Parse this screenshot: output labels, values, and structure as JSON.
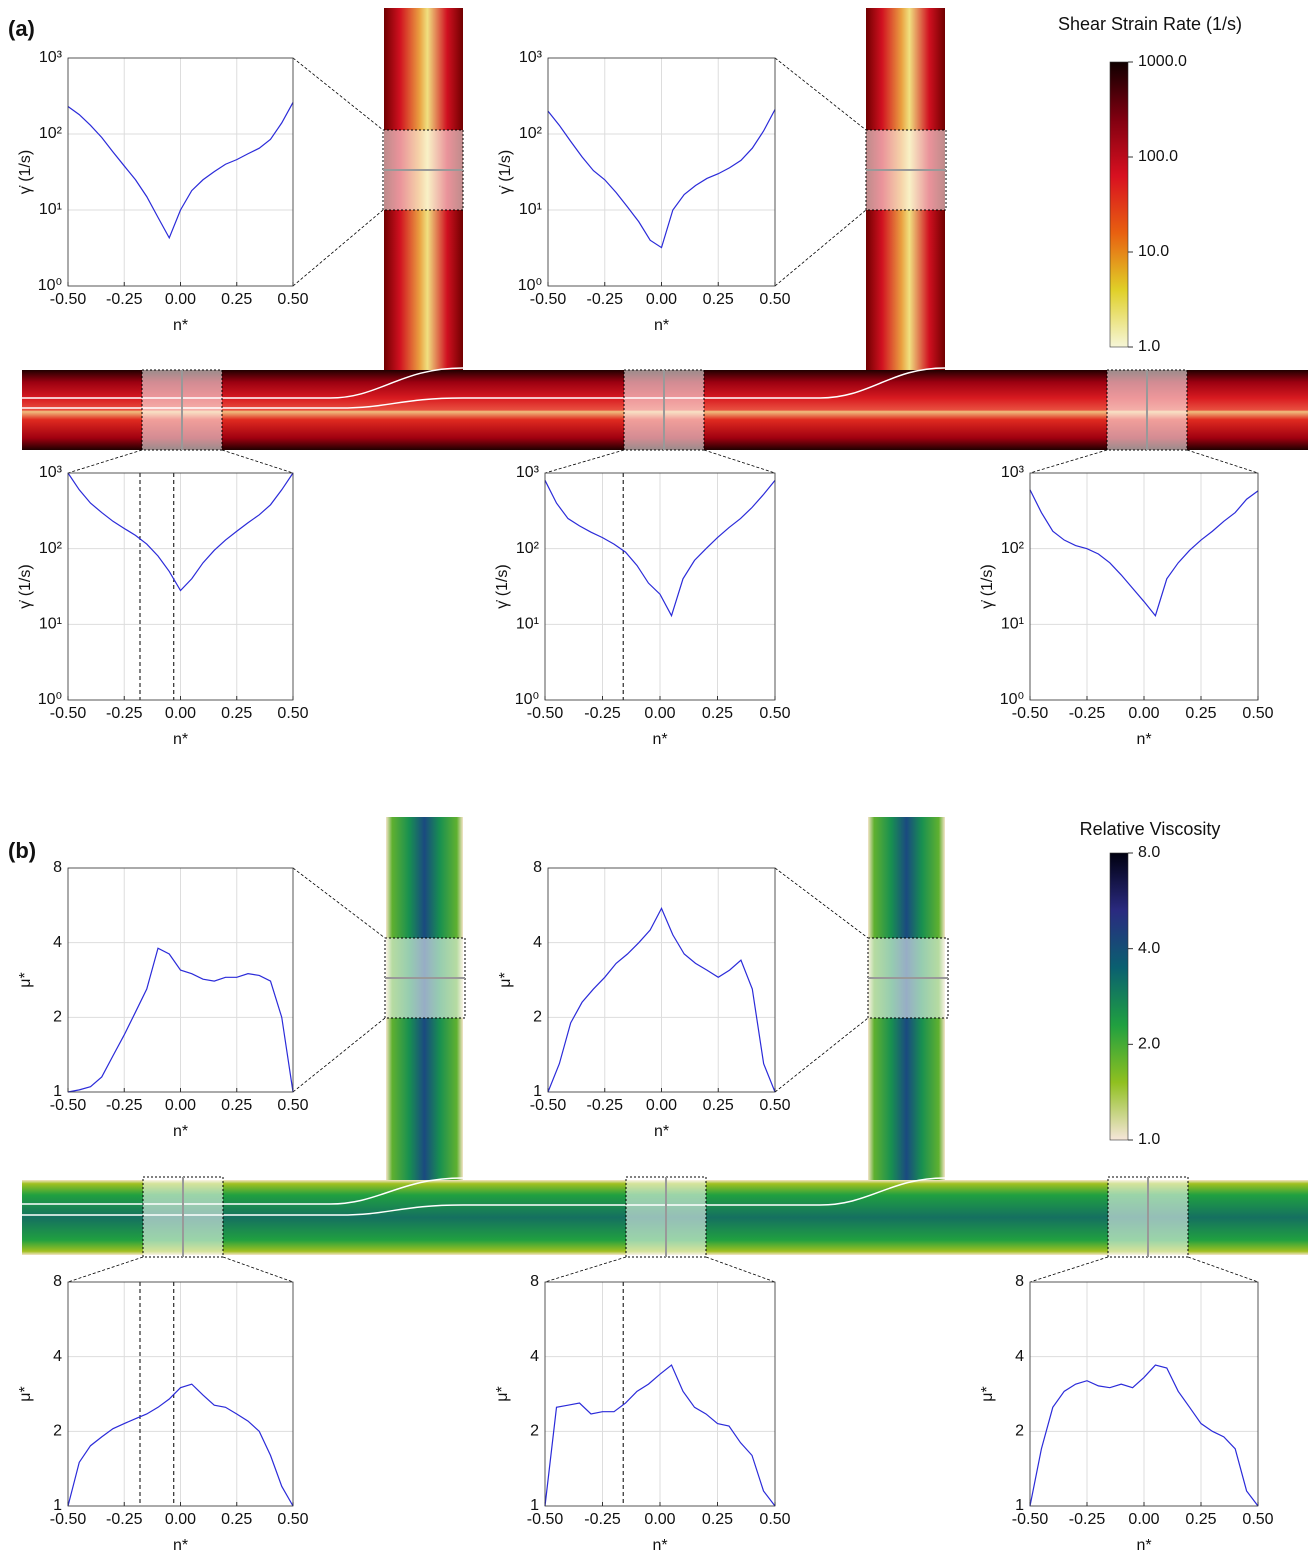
{
  "panels": [
    {
      "label": "(a)",
      "colorbar": {
        "title": "Shear Strain Rate (1/s)",
        "scale": "log",
        "lim": [
          1,
          1000
        ],
        "ticks": [
          {
            "value": 1000,
            "label": "1000.0"
          },
          {
            "value": 100,
            "label": "100.0"
          },
          {
            "value": 10,
            "label": "10.0"
          },
          {
            "value": 1,
            "label": "1.0"
          }
        ],
        "colors": [
          "#f6f6d8",
          "#e0d028",
          "#e86010",
          "#d81020",
          "#800010",
          "#100000"
        ]
      }
    },
    {
      "label": "(b)",
      "colorbar": {
        "title": "Relative Viscosity",
        "scale": "log",
        "lim": [
          1,
          8
        ],
        "ticks": [
          {
            "value": 8,
            "label": "8.0"
          },
          {
            "value": 4,
            "label": "4.0"
          },
          {
            "value": 2,
            "label": "2.0"
          },
          {
            "value": 1,
            "label": "1.0"
          }
        ],
        "colors": [
          "#f6e6da",
          "#90c020",
          "#20a040",
          "#0a6070",
          "#2a2a80",
          "#000010"
        ]
      }
    }
  ],
  "chart_data": [
    {
      "type": "line",
      "xlabel": "n*",
      "ylabel": "γ̇ (1/s)",
      "yscale": "log",
      "grid": true,
      "xlim": [
        -0.5,
        0.5
      ],
      "ylim": [
        1,
        1000
      ],
      "xticks": [
        {
          "value": -0.5,
          "label": "-0.50"
        },
        {
          "value": -0.25,
          "label": "-0.25"
        },
        {
          "value": 0,
          "label": "0.00"
        },
        {
          "value": 0.25,
          "label": "0.25"
        },
        {
          "value": 0.5,
          "label": "0.50"
        }
      ],
      "yticks": [
        {
          "value": 1,
          "label": "10⁰"
        },
        {
          "value": 10,
          "label": "10¹"
        },
        {
          "value": 100,
          "label": "10²"
        },
        {
          "value": 1000,
          "label": "10³"
        }
      ],
      "x": [
        -0.5,
        -0.45,
        -0.4,
        -0.35,
        -0.3,
        -0.25,
        -0.2,
        -0.15,
        -0.1,
        -0.05,
        0,
        0.05,
        0.1,
        0.15,
        0.2,
        0.25,
        0.3,
        0.35,
        0.4,
        0.45,
        0.5
      ],
      "series": [
        {
          "color": "#2b2bd9",
          "values": [
            230,
            180,
            130,
            90,
            58,
            38,
            25,
            15,
            8,
            4.3,
            10,
            18,
            25,
            32,
            40,
            46,
            55,
            65,
            85,
            140,
            260
          ]
        }
      ],
      "vlines": []
    },
    {
      "type": "line",
      "xlabel": "n*",
      "ylabel": "γ̇ (1/s)",
      "yscale": "log",
      "grid": true,
      "xlim": [
        -0.5,
        0.5
      ],
      "ylim": [
        1,
        1000
      ],
      "xticks": [
        {
          "value": -0.5,
          "label": "-0.50"
        },
        {
          "value": -0.25,
          "label": "-0.25"
        },
        {
          "value": 0,
          "label": "0.00"
        },
        {
          "value": 0.25,
          "label": "0.25"
        },
        {
          "value": 0.5,
          "label": "0.50"
        }
      ],
      "yticks": [
        {
          "value": 1,
          "label": "10⁰"
        },
        {
          "value": 10,
          "label": "10¹"
        },
        {
          "value": 100,
          "label": "10²"
        },
        {
          "value": 1000,
          "label": "10³"
        }
      ],
      "x": [
        -0.5,
        -0.45,
        -0.4,
        -0.35,
        -0.3,
        -0.25,
        -0.2,
        -0.15,
        -0.1,
        -0.05,
        0,
        0.05,
        0.1,
        0.15,
        0.2,
        0.25,
        0.3,
        0.35,
        0.4,
        0.45,
        0.5
      ],
      "series": [
        {
          "color": "#2b2bd9",
          "values": [
            200,
            130,
            80,
            50,
            33,
            25,
            17,
            11,
            7,
            4,
            3.2,
            10,
            16,
            21,
            26,
            30,
            36,
            45,
            65,
            110,
            210
          ]
        }
      ],
      "vlines": []
    },
    {
      "type": "line",
      "xlabel": "n*",
      "ylabel": "γ̇ (1/s)",
      "yscale": "log",
      "grid": true,
      "xlim": [
        -0.5,
        0.5
      ],
      "ylim": [
        1,
        1000
      ],
      "xticks": [
        {
          "value": -0.5,
          "label": "-0.50"
        },
        {
          "value": -0.25,
          "label": "-0.25"
        },
        {
          "value": 0,
          "label": "0.00"
        },
        {
          "value": 0.25,
          "label": "0.25"
        },
        {
          "value": 0.5,
          "label": "0.50"
        }
      ],
      "yticks": [
        {
          "value": 1,
          "label": "10⁰"
        },
        {
          "value": 10,
          "label": "10¹"
        },
        {
          "value": 100,
          "label": "10²"
        },
        {
          "value": 1000,
          "label": "10³"
        }
      ],
      "x": [
        -0.5,
        -0.45,
        -0.4,
        -0.35,
        -0.3,
        -0.25,
        -0.2,
        -0.15,
        -0.1,
        -0.05,
        0,
        0.05,
        0.1,
        0.15,
        0.2,
        0.25,
        0.3,
        0.35,
        0.4,
        0.45,
        0.5
      ],
      "series": [
        {
          "color": "#2b2bd9",
          "values": [
            1000,
            600,
            400,
            300,
            230,
            185,
            150,
            115,
            80,
            50,
            28,
            40,
            65,
            95,
            130,
            170,
            220,
            280,
            380,
            600,
            1000
          ]
        }
      ],
      "vlines": [
        -0.18,
        -0.03
      ]
    },
    {
      "type": "line",
      "xlabel": "n*",
      "ylabel": "γ̇ (1/s)",
      "yscale": "log",
      "grid": true,
      "xlim": [
        -0.5,
        0.5
      ],
      "ylim": [
        1,
        1000
      ],
      "xticks": [
        {
          "value": -0.5,
          "label": "-0.50"
        },
        {
          "value": -0.25,
          "label": "-0.25"
        },
        {
          "value": 0,
          "label": "0.00"
        },
        {
          "value": 0.25,
          "label": "0.25"
        },
        {
          "value": 0.5,
          "label": "0.50"
        }
      ],
      "yticks": [
        {
          "value": 1,
          "label": "10⁰"
        },
        {
          "value": 10,
          "label": "10¹"
        },
        {
          "value": 100,
          "label": "10²"
        },
        {
          "value": 1000,
          "label": "10³"
        }
      ],
      "x": [
        -0.5,
        -0.45,
        -0.4,
        -0.35,
        -0.3,
        -0.25,
        -0.2,
        -0.15,
        -0.1,
        -0.05,
        0,
        0.05,
        0.1,
        0.15,
        0.2,
        0.25,
        0.3,
        0.35,
        0.4,
        0.45,
        0.5
      ],
      "series": [
        {
          "color": "#2b2bd9",
          "values": [
            800,
            400,
            250,
            200,
            165,
            140,
            115,
            90,
            60,
            35,
            25,
            13,
            40,
            70,
            100,
            140,
            190,
            250,
            350,
            520,
            800
          ]
        }
      ],
      "vlines": [
        -0.16
      ]
    },
    {
      "type": "line",
      "xlabel": "n*",
      "ylabel": "γ̇ (1/s)",
      "yscale": "log",
      "grid": true,
      "xlim": [
        -0.5,
        0.5
      ],
      "ylim": [
        1,
        1000
      ],
      "xticks": [
        {
          "value": -0.5,
          "label": "-0.50"
        },
        {
          "value": -0.25,
          "label": "-0.25"
        },
        {
          "value": 0,
          "label": "0.00"
        },
        {
          "value": 0.25,
          "label": "0.25"
        },
        {
          "value": 0.5,
          "label": "0.50"
        }
      ],
      "yticks": [
        {
          "value": 1,
          "label": "10⁰"
        },
        {
          "value": 10,
          "label": "10¹"
        },
        {
          "value": 100,
          "label": "10²"
        },
        {
          "value": 1000,
          "label": "10³"
        }
      ],
      "x": [
        -0.5,
        -0.45,
        -0.4,
        -0.35,
        -0.3,
        -0.25,
        -0.2,
        -0.15,
        -0.1,
        -0.05,
        0,
        0.05,
        0.1,
        0.15,
        0.2,
        0.25,
        0.3,
        0.35,
        0.4,
        0.45,
        0.5
      ],
      "series": [
        {
          "color": "#2b2bd9",
          "values": [
            600,
            300,
            170,
            130,
            110,
            100,
            85,
            65,
            45,
            30,
            20,
            13,
            40,
            65,
            95,
            130,
            170,
            230,
            300,
            450,
            580
          ]
        }
      ],
      "vlines": []
    },
    {
      "type": "line",
      "xlabel": "n*",
      "ylabel": "μ*",
      "yscale": "log",
      "grid": true,
      "xlim": [
        -0.5,
        0.5
      ],
      "ylim": [
        1,
        8
      ],
      "xticks": [
        {
          "value": -0.5,
          "label": "-0.50"
        },
        {
          "value": -0.25,
          "label": "-0.25"
        },
        {
          "value": 0,
          "label": "0.00"
        },
        {
          "value": 0.25,
          "label": "0.25"
        },
        {
          "value": 0.5,
          "label": "0.50"
        }
      ],
      "yticks": [
        1,
        2,
        4,
        8
      ],
      "x": [
        -0.5,
        -0.45,
        -0.4,
        -0.35,
        -0.3,
        -0.25,
        -0.2,
        -0.15,
        -0.1,
        -0.05,
        0,
        0.05,
        0.1,
        0.15,
        0.2,
        0.25,
        0.3,
        0.35,
        0.4,
        0.45,
        0.5
      ],
      "series": [
        {
          "color": "#2b2bd9",
          "values": [
            1,
            1.02,
            1.05,
            1.15,
            1.4,
            1.7,
            2.1,
            2.6,
            3.8,
            3.6,
            3.1,
            3.0,
            2.85,
            2.8,
            2.9,
            2.9,
            3.0,
            2.95,
            2.8,
            2.0,
            1.0
          ]
        }
      ],
      "vlines": []
    },
    {
      "type": "line",
      "xlabel": "n*",
      "ylabel": "μ*",
      "yscale": "log",
      "grid": true,
      "xlim": [
        -0.5,
        0.5
      ],
      "ylim": [
        1,
        8
      ],
      "xticks": [
        {
          "value": -0.5,
          "label": "-0.50"
        },
        {
          "value": -0.25,
          "label": "-0.25"
        },
        {
          "value": 0,
          "label": "0.00"
        },
        {
          "value": 0.25,
          "label": "0.25"
        },
        {
          "value": 0.5,
          "label": "0.50"
        }
      ],
      "yticks": [
        1,
        2,
        4,
        8
      ],
      "x": [
        -0.5,
        -0.45,
        -0.4,
        -0.35,
        -0.3,
        -0.25,
        -0.2,
        -0.15,
        -0.1,
        -0.05,
        0,
        0.05,
        0.1,
        0.15,
        0.2,
        0.25,
        0.3,
        0.35,
        0.4,
        0.45,
        0.5
      ],
      "series": [
        {
          "color": "#2b2bd9",
          "values": [
            1,
            1.3,
            1.9,
            2.3,
            2.6,
            2.9,
            3.3,
            3.6,
            4.0,
            4.5,
            5.5,
            4.3,
            3.6,
            3.3,
            3.1,
            2.9,
            3.1,
            3.4,
            2.6,
            1.3,
            1.0
          ]
        }
      ],
      "vlines": []
    },
    {
      "type": "line",
      "xlabel": "n*",
      "ylabel": "μ*",
      "yscale": "log",
      "grid": true,
      "xlim": [
        -0.5,
        0.5
      ],
      "ylim": [
        1,
        8
      ],
      "xticks": [
        {
          "value": -0.5,
          "label": "-0.50"
        },
        {
          "value": -0.25,
          "label": "-0.25"
        },
        {
          "value": 0,
          "label": "0.00"
        },
        {
          "value": 0.25,
          "label": "0.25"
        },
        {
          "value": 0.5,
          "label": "0.50"
        }
      ],
      "yticks": [
        1,
        2,
        4,
        8
      ],
      "x": [
        -0.5,
        -0.45,
        -0.4,
        -0.35,
        -0.3,
        -0.25,
        -0.2,
        -0.15,
        -0.1,
        -0.05,
        0,
        0.05,
        0.1,
        0.15,
        0.2,
        0.25,
        0.3,
        0.35,
        0.4,
        0.45,
        0.5
      ],
      "series": [
        {
          "color": "#2b2bd9",
          "values": [
            1,
            1.5,
            1.75,
            1.9,
            2.05,
            2.15,
            2.25,
            2.35,
            2.5,
            2.7,
            3.0,
            3.1,
            2.8,
            2.55,
            2.5,
            2.35,
            2.2,
            2.0,
            1.6,
            1.2,
            1.0
          ]
        }
      ],
      "vlines": [
        -0.18,
        -0.03
      ]
    },
    {
      "type": "line",
      "xlabel": "n*",
      "ylabel": "μ*",
      "yscale": "log",
      "grid": true,
      "xlim": [
        -0.5,
        0.5
      ],
      "ylim": [
        1,
        8
      ],
      "xticks": [
        {
          "value": -0.5,
          "label": "-0.50"
        },
        {
          "value": -0.25,
          "label": "-0.25"
        },
        {
          "value": 0,
          "label": "0.00"
        },
        {
          "value": 0.25,
          "label": "0.25"
        },
        {
          "value": 0.5,
          "label": "0.50"
        }
      ],
      "yticks": [
        1,
        2,
        4,
        8
      ],
      "x": [
        -0.5,
        -0.45,
        -0.4,
        -0.35,
        -0.3,
        -0.25,
        -0.2,
        -0.15,
        -0.1,
        -0.05,
        0,
        0.05,
        0.1,
        0.15,
        0.2,
        0.25,
        0.3,
        0.35,
        0.4,
        0.45,
        0.5
      ],
      "series": [
        {
          "color": "#2b2bd9",
          "values": [
            1,
            2.5,
            2.55,
            2.6,
            2.35,
            2.4,
            2.4,
            2.6,
            2.9,
            3.1,
            3.4,
            3.7,
            2.9,
            2.5,
            2.35,
            2.15,
            2.1,
            1.8,
            1.6,
            1.15,
            1.0
          ]
        }
      ],
      "vlines": [
        -0.16
      ]
    },
    {
      "type": "line",
      "xlabel": "n*",
      "ylabel": "μ*",
      "yscale": "log",
      "grid": true,
      "xlim": [
        -0.5,
        0.5
      ],
      "ylim": [
        1,
        8
      ],
      "xticks": [
        {
          "value": -0.5,
          "label": "-0.50"
        },
        {
          "value": -0.25,
          "label": "-0.25"
        },
        {
          "value": 0,
          "label": "0.00"
        },
        {
          "value": 0.25,
          "label": "0.25"
        },
        {
          "value": 0.5,
          "label": "0.50"
        }
      ],
      "yticks": [
        1,
        2,
        4,
        8
      ],
      "x": [
        -0.5,
        -0.45,
        -0.4,
        -0.35,
        -0.3,
        -0.25,
        -0.2,
        -0.15,
        -0.1,
        -0.05,
        0,
        0.05,
        0.1,
        0.15,
        0.2,
        0.25,
        0.3,
        0.35,
        0.4,
        0.45,
        0.5
      ],
      "series": [
        {
          "color": "#2b2bd9",
          "values": [
            1,
            1.7,
            2.5,
            2.9,
            3.1,
            3.2,
            3.05,
            3.0,
            3.1,
            3.0,
            3.3,
            3.7,
            3.6,
            2.9,
            2.5,
            2.15,
            2.0,
            1.9,
            1.7,
            1.15,
            1.0
          ]
        }
      ],
      "vlines": []
    }
  ]
}
